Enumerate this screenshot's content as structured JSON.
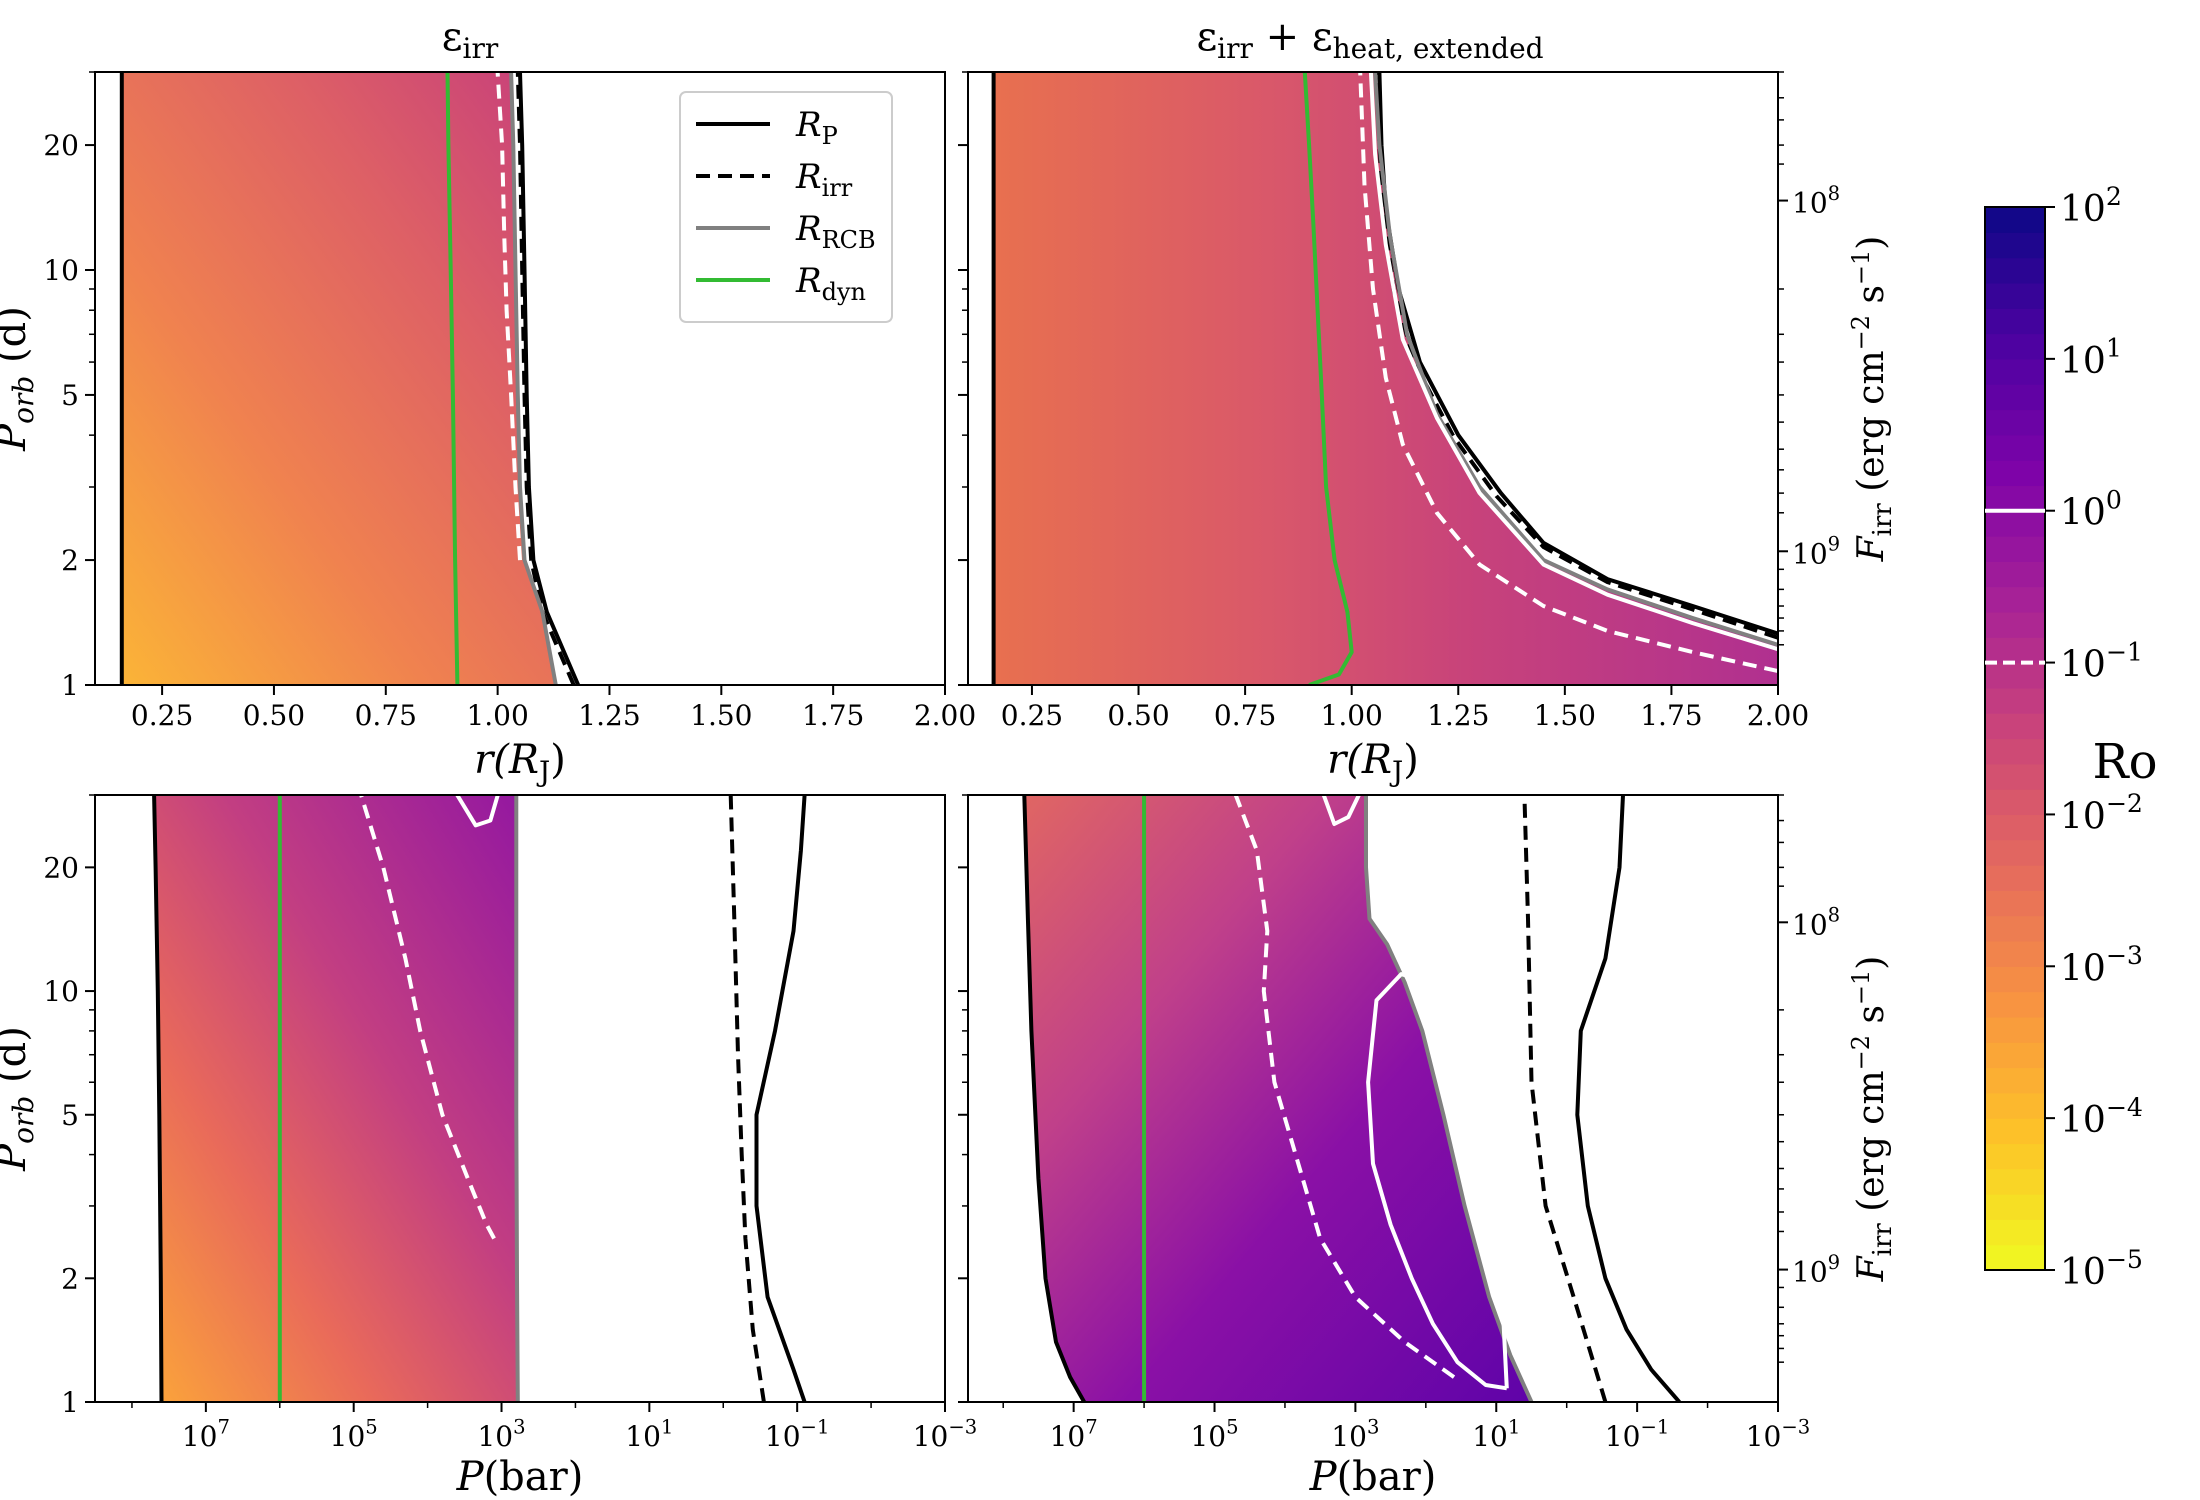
{
  "figure": {
    "colorbar": {
      "label": "Ro",
      "ticks": [
        "10^2",
        "10^1",
        "10^0",
        "10^-1",
        "10^-2",
        "10^-3",
        "10^-4",
        "10^-5"
      ],
      "marked_levels": [
        {
          "value": "10^0",
          "style": "solid"
        },
        {
          "value": "10^-1",
          "style": "dashed"
        }
      ],
      "colors": [
        "#f0f921",
        "#fdc328",
        "#f89441",
        "#e56b5d",
        "#cc4778",
        "#a82296",
        "#7e03a8",
        "#4c02a1",
        "#0d0887"
      ]
    },
    "legend": [
      {
        "label": "R_P",
        "name": "R",
        "sub": "P",
        "style": "solid",
        "color": "#000000"
      },
      {
        "label": "R_irr",
        "name": "R",
        "sub": "irr",
        "style": "dashed",
        "color": "#000000"
      },
      {
        "label": "R_RCB",
        "name": "R",
        "sub": "RCB",
        "style": "solid",
        "color": "#808080"
      },
      {
        "label": "R_dyn",
        "name": "R",
        "sub": "dyn",
        "style": "solid",
        "color": "#33bb33"
      }
    ]
  },
  "chart_data": [
    {
      "panel": "top-left",
      "type": "heatmap",
      "title": "ε_irr",
      "title_main": "ε",
      "title_sub": "irr",
      "xlabel": "r(R_J)",
      "xlabel_main": "r(R",
      "xlabel_sub": "J",
      "xlabel_end": ")",
      "ylabel": "P_orb (d)",
      "ylabel_main": "P",
      "ylabel_sub": "orb",
      "ylabel_end": " (d)",
      "x_scale": "linear",
      "xlim": [
        0.1,
        2.0
      ],
      "xticks": [
        0.25,
        0.5,
        0.75,
        1.0,
        1.25,
        1.5,
        1.75,
        2.0
      ],
      "xtick_labels": [
        "0.25",
        "0.50",
        "0.75",
        "1.00",
        "1.25",
        "1.50",
        "1.75",
        "2.00"
      ],
      "y_scale": "log",
      "ylim": [
        1,
        30
      ],
      "yticks": [
        1,
        2,
        5,
        10,
        20
      ],
      "ytick_labels": [
        "1",
        "2",
        "5",
        "10",
        "20"
      ],
      "right_axis": null,
      "fill_inner_edge": {
        "x": [
          0.16,
          0.16
        ],
        "y": [
          1,
          30
        ]
      },
      "fill_outer_edge": {
        "x": [
          1.13,
          1.1,
          1.06,
          1.05,
          1.045,
          1.04,
          1.035,
          1.03
        ],
        "y": [
          1,
          1.5,
          2,
          3,
          5,
          10,
          20,
          30
        ]
      },
      "curves": [
        {
          "name": "R_P-inner",
          "style": "solid",
          "color": "#000000",
          "x": [
            0.16,
            0.16
          ],
          "y": [
            1,
            30
          ]
        },
        {
          "name": "R_P",
          "style": "solid",
          "color": "#000000",
          "x": [
            1.18,
            1.11,
            1.08,
            1.07,
            1.065,
            1.06,
            1.055,
            1.05
          ],
          "y": [
            1,
            1.5,
            2,
            3,
            5,
            10,
            20,
            30
          ]
        },
        {
          "name": "R_irr",
          "style": "dashed",
          "color": "#000000",
          "x": [
            1.17,
            1.1,
            1.075,
            1.065,
            1.06,
            1.055,
            1.05,
            1.045
          ],
          "y": [
            1,
            1.5,
            2,
            3,
            5,
            10,
            20,
            30
          ]
        },
        {
          "name": "R_RCB",
          "style": "solid",
          "color": "#808080",
          "x": [
            1.13,
            1.1,
            1.06,
            1.05,
            1.045,
            1.04,
            1.035,
            1.03
          ],
          "y": [
            1,
            1.5,
            2,
            3,
            5,
            10,
            20,
            30
          ]
        },
        {
          "name": "R_dyn",
          "style": "solid",
          "color": "#33bb33",
          "x": [
            0.91,
            0.905,
            0.9,
            0.895,
            0.89,
            0.888
          ],
          "y": [
            1,
            2,
            5,
            10,
            20,
            30
          ]
        },
        {
          "name": "Ro-0.1",
          "style": "dashed",
          "color": "#ffffff",
          "x": [
            1.05,
            1.04,
            1.03,
            1.02,
            1.015,
            1.01,
            1.0
          ],
          "y": [
            2,
            3,
            5,
            8,
            12,
            20,
            30
          ]
        }
      ]
    },
    {
      "panel": "top-right",
      "type": "heatmap",
      "title": "ε_irr + ε_heat, extended",
      "title_main": "ε",
      "title_sub": "irr",
      "title_plus": " + ε",
      "title_sub2": "heat, extended",
      "xlabel": "r(R_J)",
      "xlabel_main": "r(R",
      "xlabel_sub": "J",
      "xlabel_end": ")",
      "ylabel": "",
      "ylabel_main": "",
      "ylabel_sub": "",
      "ylabel_end": "",
      "x_scale": "linear",
      "xlim": [
        0.1,
        2.0
      ],
      "xticks": [
        0.25,
        0.5,
        0.75,
        1.0,
        1.25,
        1.5,
        1.75,
        2.0
      ],
      "xtick_labels": [
        "0.25",
        "0.50",
        "0.75",
        "1.00",
        "1.25",
        "1.50",
        "1.75",
        "2.00"
      ],
      "y_scale": "log",
      "ylim": [
        1,
        30
      ],
      "yticks": [
        1,
        2,
        5,
        10,
        20
      ],
      "ytick_labels": [],
      "right_axis": {
        "label": "F_irr (erg cm^-2 s^-1)",
        "label_main": "F",
        "label_sub": "irr",
        "label_end": " (erg cm",
        "exp1": "−2",
        "mid": " s",
        "exp2": "−1",
        "close": ")",
        "ticks_at_porb": [
          14.7,
          2.1
        ],
        "tick_labels": [
          "10^8",
          "10^9"
        ]
      },
      "fill_inner_edge": {
        "x": [
          0.16,
          0.16
        ],
        "y": [
          1,
          30
        ]
      },
      "fill_outer_edge": {
        "x": [
          2.0,
          1.8,
          1.6,
          1.45,
          1.3,
          1.2,
          1.13,
          1.09,
          1.065,
          1.055
        ],
        "y": [
          1.25,
          1.45,
          1.7,
          2.0,
          3.0,
          4.5,
          7.0,
          12,
          20,
          30
        ]
      },
      "curves": [
        {
          "name": "R_P-inner",
          "style": "solid",
          "color": "#000000",
          "x": [
            0.16,
            0.16
          ],
          "y": [
            1,
            30
          ]
        },
        {
          "name": "R_P",
          "style": "solid",
          "color": "#000000",
          "x": [
            2.0,
            1.8,
            1.6,
            1.45,
            1.35,
            1.25,
            1.16,
            1.11,
            1.08,
            1.07,
            1.065
          ],
          "y": [
            1.33,
            1.55,
            1.8,
            2.2,
            2.9,
            4.0,
            6.0,
            9.0,
            14,
            20,
            30
          ]
        },
        {
          "name": "R_irr",
          "style": "dashed",
          "color": "#000000",
          "x": [
            2.0,
            1.8,
            1.6,
            1.45,
            1.34,
            1.24,
            1.15,
            1.1,
            1.075,
            1.065,
            1.06
          ],
          "y": [
            1.3,
            1.52,
            1.77,
            2.15,
            2.85,
            3.95,
            5.9,
            8.8,
            13.5,
            20,
            30
          ]
        },
        {
          "name": "R_RCB",
          "style": "solid",
          "color": "#808080",
          "x": [
            2.0,
            1.8,
            1.6,
            1.45,
            1.3,
            1.2,
            1.13,
            1.09,
            1.065,
            1.055
          ],
          "y": [
            1.25,
            1.45,
            1.7,
            2.0,
            3.0,
            4.5,
            7.0,
            12,
            20,
            30
          ]
        },
        {
          "name": "Ro-1",
          "style": "solid",
          "color": "#ffffff",
          "x": [
            2.0,
            1.8,
            1.6,
            1.45,
            1.3,
            1.2,
            1.12,
            1.08,
            1.055,
            1.045
          ],
          "y": [
            1.22,
            1.41,
            1.65,
            1.95,
            2.9,
            4.4,
            6.8,
            11.5,
            19,
            30
          ]
        },
        {
          "name": "Ro-0.1",
          "style": "dashed",
          "color": "#ffffff",
          "x": [
            2.0,
            1.8,
            1.6,
            1.45,
            1.3,
            1.2,
            1.12,
            1.08,
            1.05,
            1.03,
            1.02
          ],
          "y": [
            1.08,
            1.2,
            1.35,
            1.55,
            1.95,
            2.6,
            3.8,
            5.5,
            9.0,
            16,
            30
          ]
        },
        {
          "name": "R_dyn",
          "style": "solid",
          "color": "#33bb33",
          "x": [
            0.9,
            0.97,
            1.0,
            0.99,
            0.96,
            0.94,
            0.93,
            0.92,
            0.91,
            0.9,
            0.89
          ],
          "y": [
            1,
            1.06,
            1.2,
            1.5,
            2.0,
            3.0,
            5.0,
            8.0,
            13,
            20,
            30
          ]
        }
      ]
    },
    {
      "panel": "bottom-left",
      "type": "heatmap",
      "title": "",
      "xlabel": "P(bar)",
      "xlabel_main": "P",
      "xlabel_sub": "",
      "xlabel_end": "(bar)",
      "ylabel": "P_orb (d)",
      "ylabel_main": "P",
      "ylabel_sub": "orb",
      "ylabel_end": " (d)",
      "x_scale": "log-reversed",
      "xlim_log10": [
        8.5,
        -3
      ],
      "xticks_log10": [
        7,
        5,
        3,
        1,
        -1,
        -3
      ],
      "xtick_labels": [
        "10^7",
        "10^5",
        "10^3",
        "10^1",
        "10^-1",
        "10^-3"
      ],
      "y_scale": "log",
      "ylim": [
        1,
        30
      ],
      "yticks": [
        1,
        2,
        5,
        10,
        20
      ],
      "ytick_labels": [
        "1",
        "2",
        "5",
        "10",
        "20"
      ],
      "right_axis": null,
      "fill_inner_edge": {
        "x": [
          7.6,
          7.61,
          7.63,
          7.65,
          7.68,
          7.7
        ],
        "y": [
          1,
          2,
          5,
          10,
          20,
          30
        ]
      },
      "fill_outer_edge": {
        "x": [
          2.78,
          2.79,
          2.8,
          2.8,
          2.8,
          2.8
        ],
        "y": [
          1,
          2,
          5,
          10,
          20,
          30
        ]
      },
      "curves": [
        {
          "name": "R_P-inner",
          "style": "solid",
          "color": "#000000",
          "x": [
            7.6,
            7.61,
            7.63,
            7.65,
            7.68,
            7.7
          ],
          "y": [
            1,
            2,
            5,
            10,
            20,
            30
          ]
        },
        {
          "name": "R_P",
          "style": "solid",
          "color": "#000000",
          "x": [
            -1.1,
            -0.95,
            -0.6,
            -0.45,
            -0.45,
            -0.7,
            -0.95,
            -1.05,
            -1.1
          ],
          "y": [
            1,
            1.2,
            1.8,
            3.0,
            5.0,
            8.0,
            14,
            22,
            30
          ]
        },
        {
          "name": "R_irr",
          "style": "dashed",
          "color": "#000000",
          "x": [
            -0.55,
            -0.4,
            -0.3,
            -0.25,
            -0.2,
            -0.15,
            -0.1
          ],
          "y": [
            1,
            1.5,
            2.5,
            4.0,
            7.0,
            15,
            30
          ]
        },
        {
          "name": "R_RCB",
          "style": "solid",
          "color": "#808080",
          "x": [
            2.78,
            2.79,
            2.8,
            2.8,
            2.8,
            2.8
          ],
          "y": [
            1,
            2,
            5,
            10,
            20,
            30
          ]
        },
        {
          "name": "R_dyn",
          "style": "solid",
          "color": "#33bb33",
          "x": [
            6,
            6
          ],
          "y": [
            1,
            30
          ]
        },
        {
          "name": "Ro-0.1",
          "style": "dashed",
          "color": "#ffffff",
          "x": [
            3.1,
            3.2,
            3.4,
            3.8,
            4.1,
            4.3,
            4.6,
            4.9
          ],
          "y": [
            2.5,
            2.7,
            3.3,
            5.0,
            8.0,
            12,
            20,
            30
          ]
        },
        {
          "name": "Ro-1",
          "style": "solid",
          "color": "#ffffff",
          "x": [
            3.05,
            3.15,
            3.35,
            3.6
          ],
          "y": [
            30,
            26,
            25.3,
            30
          ]
        }
      ]
    },
    {
      "panel": "bottom-right",
      "type": "heatmap",
      "title": "",
      "xlabel": "P(bar)",
      "xlabel_main": "P",
      "xlabel_sub": "",
      "xlabel_end": "(bar)",
      "ylabel": "",
      "ylabel_main": "",
      "ylabel_sub": "",
      "ylabel_end": "",
      "x_scale": "log-reversed",
      "xlim_log10": [
        8.5,
        -3
      ],
      "xticks_log10": [
        7,
        5,
        3,
        1,
        -1,
        -3
      ],
      "xtick_labels": [
        "10^7",
        "10^5",
        "10^3",
        "10^1",
        "10^-1",
        "10^-3"
      ],
      "y_scale": "log",
      "ylim": [
        1,
        30
      ],
      "yticks": [
        1,
        2,
        5,
        10,
        20
      ],
      "ytick_labels": [],
      "right_axis": {
        "label": "F_irr (erg cm^-2 s^-1)",
        "label_main": "F",
        "label_sub": "irr",
        "label_end": " (erg cm",
        "exp1": "−2",
        "mid": " s",
        "exp2": "−1",
        "close": ")",
        "ticks_at_porb": [
          14.7,
          2.1
        ],
        "tick_labels": [
          "10^8",
          "10^9"
        ]
      },
      "fill_inner_edge": {
        "x": [
          6.85,
          7.05,
          7.25,
          7.4,
          7.5,
          7.6,
          7.65,
          7.7
        ],
        "y": [
          1,
          1.15,
          1.4,
          2.0,
          3.5,
          8.0,
          15,
          30
        ]
      },
      "fill_outer_edge": {
        "x": [
          0.5,
          0.8,
          1.1,
          1.45,
          1.75,
          2.05,
          2.3,
          2.55,
          2.8,
          2.85,
          2.85
        ],
        "y": [
          1,
          1.3,
          1.8,
          3.0,
          5.0,
          8.0,
          10.5,
          13,
          15,
          20,
          30
        ]
      },
      "curves": [
        {
          "name": "R_P-inner",
          "style": "solid",
          "color": "#000000",
          "x": [
            6.85,
            7.05,
            7.25,
            7.4,
            7.5,
            7.6,
            7.65,
            7.7
          ],
          "y": [
            1,
            1.15,
            1.4,
            2.0,
            3.5,
            8.0,
            15,
            30
          ]
        },
        {
          "name": "R_P",
          "style": "solid",
          "color": "#000000",
          "x": [
            -1.6,
            -1.2,
            -0.85,
            -0.55,
            -0.3,
            -0.15,
            -0.2,
            -0.55,
            -0.75,
            -0.8
          ],
          "y": [
            1,
            1.2,
            1.5,
            2.0,
            3.0,
            5.0,
            8.0,
            12,
            20,
            30
          ]
        },
        {
          "name": "R_irr",
          "style": "dashed",
          "color": "#000000",
          "x": [
            -0.55,
            -0.35,
            -0.1,
            0.3,
            0.5,
            0.55,
            0.6
          ],
          "y": [
            1,
            1.3,
            1.8,
            3.0,
            6.0,
            15,
            30
          ]
        },
        {
          "name": "R_RCB",
          "style": "solid",
          "color": "#808080",
          "x": [
            0.5,
            0.8,
            1.1,
            1.45,
            1.75,
            2.05,
            2.3,
            2.55,
            2.8,
            2.85,
            2.85
          ],
          "y": [
            1,
            1.3,
            1.8,
            3.0,
            5.0,
            8.0,
            10.5,
            13,
            15,
            20,
            30
          ]
        },
        {
          "name": "R_dyn",
          "style": "solid",
          "color": "#33bb33",
          "x": [
            6,
            6
          ],
          "y": [
            1,
            30
          ]
        },
        {
          "name": "Ro-1",
          "style": "solid",
          "color": "#ffffff",
          "x": [
            0.85,
            1.15,
            1.55,
            1.9,
            2.2,
            2.5,
            2.75,
            2.82,
            2.7,
            2.35,
            1.95,
            1.5,
            1.05,
            0.9,
            0.85
          ],
          "y": [
            1.08,
            1.1,
            1.25,
            1.55,
            2.0,
            2.7,
            3.8,
            6.0,
            9.5,
            11,
            10.5,
            6.5,
            3.0,
            1.6,
            1.08
          ]
        },
        {
          "name": "Ro-0.1",
          "style": "dashed",
          "color": "#ffffff",
          "x": [
            1.6,
            2.3,
            3.0,
            3.5,
            3.75,
            4.15,
            4.3,
            4.25,
            4.4,
            4.7
          ],
          "y": [
            1.15,
            1.4,
            1.8,
            2.5,
            3.5,
            6.0,
            10,
            14,
            22,
            30
          ]
        },
        {
          "name": "Ro-1-top",
          "style": "solid",
          "color": "#ffffff",
          "x": [
            2.95,
            3.1,
            3.3,
            3.45
          ],
          "y": [
            30,
            26.5,
            25.5,
            30
          ]
        }
      ]
    }
  ]
}
